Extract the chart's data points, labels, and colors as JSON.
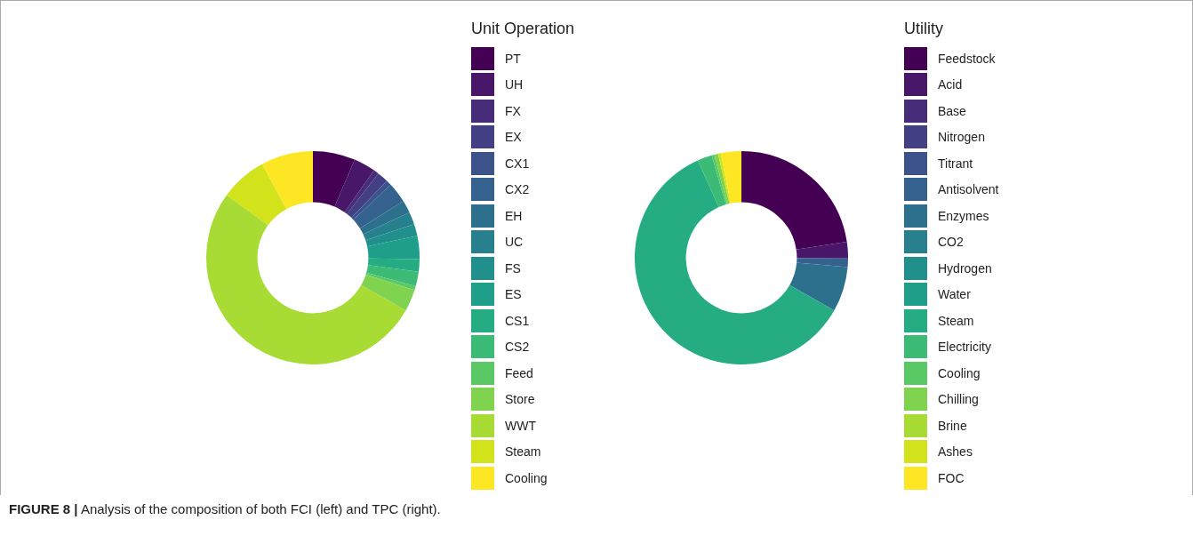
{
  "chart_data": [
    {
      "type": "donut",
      "legend_title": "Unit Operation",
      "legend": "right",
      "categories": [
        "PT",
        "UH",
        "FX",
        "EX",
        "CX1",
        "CX2",
        "EH",
        "UC",
        "FS",
        "ES",
        "CS1",
        "CS2",
        "Feed",
        "Store",
        "WWT",
        "Steam",
        "Cooling"
      ],
      "values": [
        6.4,
        3.3,
        0.8,
        1.7,
        0.8,
        3.1,
        1.9,
        1.9,
        1.8,
        3.5,
        1.9,
        2.2,
        0.6,
        3.3,
        51.8,
        7.1,
        7.9
      ],
      "colors": [
        "#440154",
        "#481769",
        "#472c7a",
        "#423f85",
        "#3b528b",
        "#34618d",
        "#2d708e",
        "#27808e",
        "#21908d",
        "#1f9e89",
        "#25ac82",
        "#3bbb75",
        "#5ac864",
        "#7fd34e",
        "#a8db34",
        "#d2e21b",
        "#fde725"
      ]
    },
    {
      "type": "donut",
      "legend_title": "Utility",
      "legend": "right",
      "categories": [
        "Feedstock",
        "Acid",
        "Base",
        "Nitrogen",
        "Titrant",
        "Antisolvent",
        "Enzymes",
        "CO2",
        "Hydrogen",
        "Water",
        "Steam",
        "Electricity",
        "Cooling",
        "Chilling",
        "Brine",
        "Ashes",
        "FOC"
      ],
      "values": [
        22.6,
        2.5,
        0,
        0,
        0,
        1.3,
        6.8,
        0,
        0,
        0,
        60.1,
        2.2,
        0.4,
        0.6,
        0,
        0.4,
        3.1
      ],
      "colors": [
        "#440154",
        "#481769",
        "#472c7a",
        "#423f85",
        "#3b528b",
        "#34618d",
        "#2d708e",
        "#27808e",
        "#21908d",
        "#1f9e89",
        "#25ac82",
        "#3bbb75",
        "#5ac864",
        "#7fd34e",
        "#a8db34",
        "#d2e21b",
        "#fde725"
      ],
      "annotations": [
        "FIGURE 8 | Analysis of the composition of both FCI (left) and TPC (right)."
      ]
    }
  ]
}
